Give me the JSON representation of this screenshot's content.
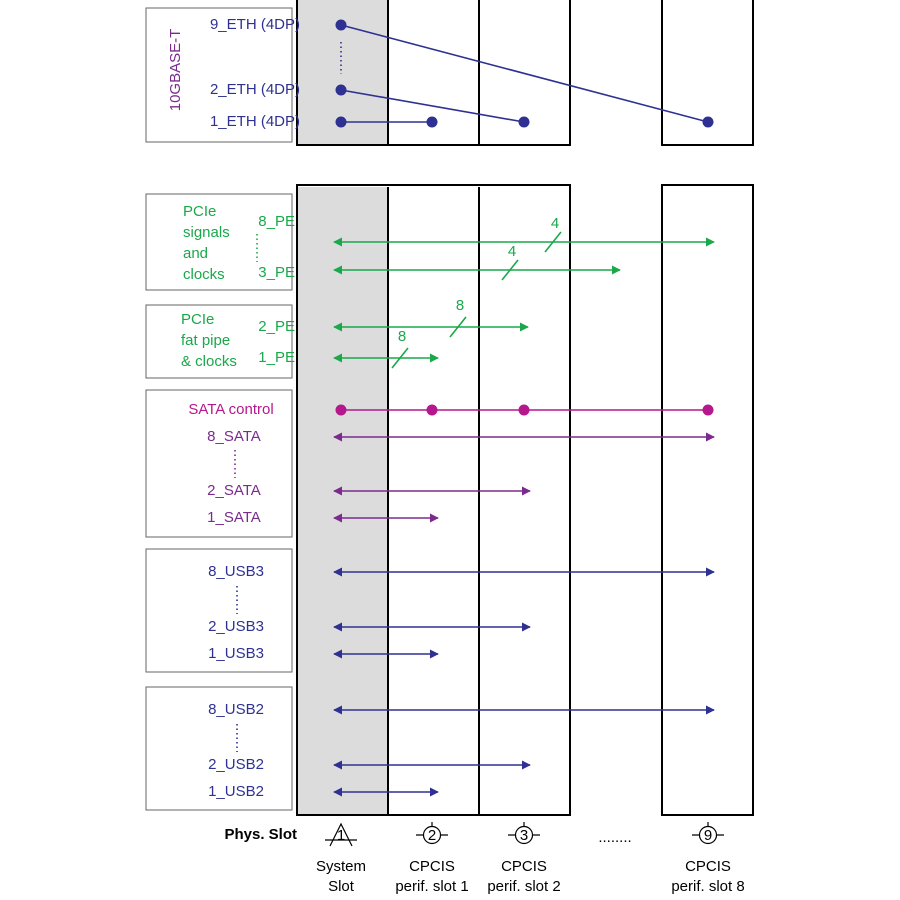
{
  "eth": {
    "title": "10GBASE-T",
    "signals": [
      "9_ETH (4DP)",
      "2_ETH (4DP)",
      "1_ETH (4DP)"
    ]
  },
  "pcie": {
    "title": [
      "PCIe",
      "signals",
      "and",
      "clocks"
    ],
    "signals": [
      "8_PE",
      "3_PE"
    ],
    "widths": [
      "4",
      "4"
    ]
  },
  "fat_pipe": {
    "title": [
      "PCIe",
      "fat pipe",
      "& clocks"
    ],
    "signals": [
      "2_PE",
      "1_PE"
    ],
    "widths": [
      "8",
      "8"
    ]
  },
  "sata": {
    "control": "SATA control",
    "signals": [
      "8_SATA",
      "2_SATA",
      "1_SATA"
    ]
  },
  "usb3": {
    "signals": [
      "8_USB3",
      "2_USB3",
      "1_USB3"
    ]
  },
  "usb2": {
    "signals": [
      "8_USB2",
      "2_USB2",
      "1_USB2"
    ]
  },
  "slots": {
    "heading": "Phys. Slot",
    "ellipsis": "........",
    "items": [
      {
        "number": "1",
        "label": [
          "System",
          "Slot"
        ]
      },
      {
        "number": "2",
        "label": [
          "CPCIS",
          "perif. slot 1"
        ]
      },
      {
        "number": "3",
        "label": [
          "CPCIS",
          "perif. slot 2"
        ]
      },
      {
        "number": "9",
        "label": [
          "CPCIS",
          "perif. slot 8"
        ]
      }
    ]
  }
}
